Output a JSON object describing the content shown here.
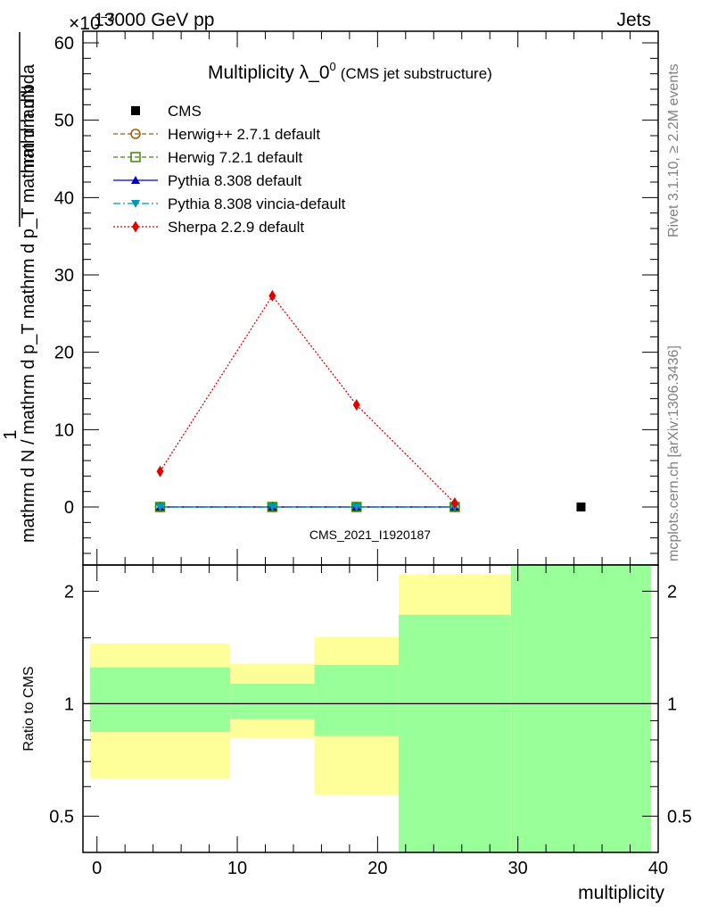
{
  "header": {
    "energy_label": "13000 GeV pp",
    "process_label": "Jets",
    "exponent_label": "×10",
    "exponent_power": "−3"
  },
  "side_labels": {
    "rivet": "Rivet 3.1.10, ≥ 2.2M events",
    "mcplots": "mcplots.cern.ch [arXiv:1306.3436]"
  },
  "chart_data": [
    {
      "type": "line",
      "title": "Multiplicity λ_0",
      "title_superscript": "0",
      "subtitle": "(CMS jet substructure)",
      "watermark": "CMS_2021_I1920187",
      "ylabel_numerator": "mathrm dN",
      "ylabel_prefix": "1",
      "ylabel_denominator": "mathrm d N / mathrm d p_T mathrm d p_T mathrm d lambda",
      "ylim": [
        -7.5,
        61.5
      ],
      "yticks": [
        0,
        10,
        20,
        30,
        40,
        50,
        60
      ],
      "xlim": [
        -1,
        40
      ],
      "scale_factor": 0.001,
      "legend_position": "top-left",
      "series": [
        {
          "name": "CMS",
          "color": "#000000",
          "marker": "square",
          "line": "none",
          "x": [
            34.5
          ],
          "y": [
            0
          ]
        },
        {
          "name": "Herwig++ 2.7.1 default",
          "color": "#a05a00",
          "marker": "circle-open",
          "line": "dashed",
          "x": [
            4.5,
            12.5,
            18.5,
            25.5
          ],
          "y": [
            0,
            0,
            0,
            0
          ]
        },
        {
          "name": "Herwig 7.2.1 default",
          "color": "#3a8a00",
          "marker": "square-open",
          "line": "dashed",
          "x": [
            4.5,
            12.5,
            18.5,
            25.5
          ],
          "y": [
            0,
            0,
            0,
            0
          ]
        },
        {
          "name": "Pythia 8.308 default",
          "color": "#0000cc",
          "marker": "triangle-up",
          "line": "solid",
          "x": [
            4.5,
            12.5,
            18.5,
            25.5
          ],
          "y": [
            0,
            0,
            0,
            0
          ]
        },
        {
          "name": "Pythia 8.308 vincia-default",
          "color": "#0096b4",
          "marker": "triangle-down",
          "line": "dashdot",
          "x": [
            4.5,
            12.5,
            18.5,
            25.5
          ],
          "y": [
            0,
            0,
            0,
            0
          ]
        },
        {
          "name": "Sherpa 2.2.9 default",
          "color": "#e00000",
          "marker": "diamond",
          "line": "dotted",
          "x": [
            4.5,
            12.5,
            18.5,
            25.5
          ],
          "y": [
            4.6,
            27.3,
            13.2,
            0.5
          ]
        }
      ]
    },
    {
      "type": "area",
      "ylabel": "Ratio to CMS",
      "xlabel": "multiplicity",
      "ylim": [
        0.4,
        2.35
      ],
      "yticks": [
        0.5,
        1,
        2
      ],
      "ytick_labels": [
        "0.5",
        "1",
        "2"
      ],
      "xlim": [
        -1,
        40
      ],
      "xticks": [
        0,
        10,
        20,
        30,
        40
      ],
      "xtick_labels": [
        "0",
        "10",
        "20",
        "30",
        "40"
      ],
      "reference_line": 1,
      "band_colors": {
        "stat": "#99ff99",
        "syst": "#ffff99"
      },
      "bins": [
        {
          "lo": -0.5,
          "hi": 9.5,
          "stat": [
            0.84,
            1.25
          ],
          "syst": [
            0.63,
            1.45
          ]
        },
        {
          "lo": 9.5,
          "hi": 15.5,
          "stat": [
            0.91,
            1.13
          ],
          "syst": [
            0.81,
            1.28
          ]
        },
        {
          "lo": 15.5,
          "hi": 21.5,
          "stat": [
            0.82,
            1.27
          ],
          "syst": [
            0.57,
            1.51
          ]
        },
        {
          "lo": 21.5,
          "hi": 29.5,
          "stat": [
            0.4,
            1.73
          ],
          "syst": [
            0.4,
            2.22
          ]
        },
        {
          "lo": 29.5,
          "hi": 39.5,
          "stat": [
            0.4,
            2.35
          ],
          "syst": [
            0.4,
            2.35
          ]
        }
      ]
    }
  ]
}
